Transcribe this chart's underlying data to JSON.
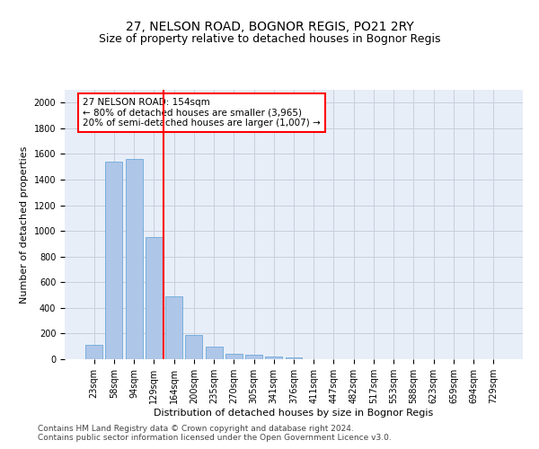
{
  "title": "27, NELSON ROAD, BOGNOR REGIS, PO21 2RY",
  "subtitle": "Size of property relative to detached houses in Bognor Regis",
  "xlabel": "Distribution of detached houses by size in Bognor Regis",
  "ylabel": "Number of detached properties",
  "categories": [
    "23sqm",
    "58sqm",
    "94sqm",
    "129sqm",
    "164sqm",
    "200sqm",
    "235sqm",
    "270sqm",
    "305sqm",
    "341sqm",
    "376sqm",
    "411sqm",
    "447sqm",
    "482sqm",
    "517sqm",
    "553sqm",
    "588sqm",
    "623sqm",
    "659sqm",
    "694sqm",
    "729sqm"
  ],
  "values": [
    110,
    1540,
    1560,
    950,
    490,
    190,
    95,
    45,
    35,
    22,
    15,
    0,
    0,
    0,
    0,
    0,
    0,
    0,
    0,
    0,
    0
  ],
  "bar_color": "#aec6e8",
  "bar_edge_color": "#5a9fd4",
  "vline_x": 3.5,
  "vline_color": "red",
  "annotation_text": "27 NELSON ROAD: 154sqm\n← 80% of detached houses are smaller (3,965)\n20% of semi-detached houses are larger (1,007) →",
  "annotation_box_color": "white",
  "annotation_box_edge_color": "red",
  "ylim": [
    0,
    2100
  ],
  "yticks": [
    0,
    200,
    400,
    600,
    800,
    1000,
    1200,
    1400,
    1600,
    1800,
    2000
  ],
  "footer1": "Contains HM Land Registry data © Crown copyright and database right 2024.",
  "footer2": "Contains public sector information licensed under the Open Government Licence v3.0.",
  "bg_color": "#e8eef8",
  "grid_color": "#c8d0dc",
  "title_fontsize": 10,
  "subtitle_fontsize": 9,
  "axis_label_fontsize": 8,
  "tick_fontsize": 7,
  "annotation_fontsize": 7.5,
  "footer_fontsize": 6.5
}
